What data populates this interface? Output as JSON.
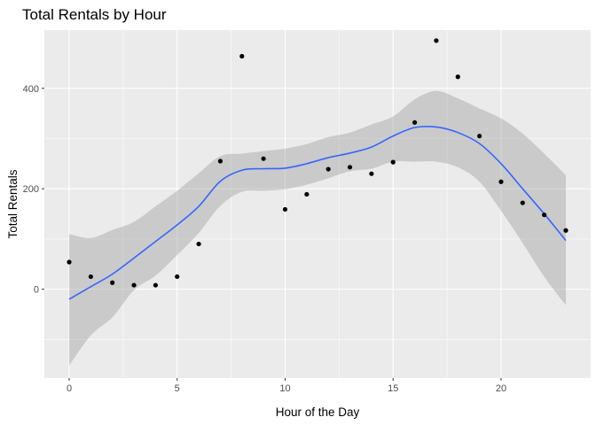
{
  "chart_data": {
    "type": "scatter",
    "title": "Total Rentals by Hour",
    "xlabel": "Hour of the Day",
    "ylabel": "Total Rentals",
    "xlim": [
      -1.15,
      24.15
    ],
    "ylim": [
      -177,
      516
    ],
    "x_ticks": [
      0,
      5,
      10,
      15,
      20
    ],
    "y_ticks": [
      0,
      200,
      400
    ],
    "grid": true,
    "points": {
      "x": [
        0,
        1,
        2,
        3,
        4,
        5,
        6,
        7,
        8,
        9,
        10,
        11,
        12,
        13,
        14,
        15,
        16,
        17,
        18,
        19,
        20,
        21,
        22,
        23
      ],
      "y": [
        54,
        25,
        13,
        8,
        8,
        25,
        90,
        255,
        464,
        260,
        159,
        189,
        239,
        243,
        230,
        253,
        332,
        495,
        423,
        305,
        214,
        172,
        148,
        117
      ]
    },
    "smooth": {
      "method": "loess",
      "x": [
        0,
        1,
        2,
        3,
        4,
        5,
        6,
        7,
        8,
        9,
        10,
        11,
        12,
        13,
        14,
        15,
        16,
        17,
        18,
        19,
        20,
        21,
        22,
        23
      ],
      "y": [
        -20,
        5,
        30,
        62,
        95,
        128,
        165,
        215,
        237,
        240,
        241,
        250,
        262,
        271,
        283,
        305,
        322,
        323,
        312,
        290,
        250,
        200,
        150,
        97
      ],
      "lower": [
        -152,
        -92,
        -56,
        -2,
        27,
        68,
        112,
        166,
        194,
        196,
        199,
        208,
        221,
        235,
        240,
        254,
        254,
        254,
        243,
        214,
        156,
        92,
        25,
        -32
      ],
      "upper": [
        110,
        102,
        118,
        134,
        165,
        196,
        231,
        265,
        270,
        275,
        280,
        289,
        303,
        312,
        328,
        344,
        378,
        395,
        380,
        360,
        340,
        310,
        270,
        227
      ],
      "color": "#3366ff",
      "band_color": "#999999"
    },
    "point_color": "#000000",
    "panel_background": "#ebebeb",
    "grid_color": "#ffffff"
  }
}
